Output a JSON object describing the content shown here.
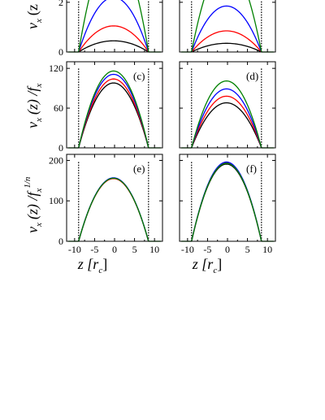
{
  "chart_data": [
    {
      "id": "a",
      "type": "line",
      "panel_label": "",
      "xlim": [
        -12,
        12
      ],
      "ylim": [
        0,
        3.4
      ],
      "yticks": [
        0,
        2
      ],
      "yticklabels": [
        "0",
        "2"
      ],
      "xticks": [
        -10,
        -5,
        0,
        5,
        10
      ],
      "xticklabels": [
        "",
        "",
        "",
        "",
        ""
      ],
      "walls": [
        -9,
        8.5
      ],
      "z0": -9,
      "z1": 8.5,
      "series": [
        {
          "color": "#000000",
          "peak": 0.45
        },
        {
          "color": "#ff0000",
          "peak": 1.05
        },
        {
          "color": "#0000ff",
          "peak": 2.2
        },
        {
          "color": "#008000",
          "peak": 4.2
        }
      ]
    },
    {
      "id": "b",
      "type": "line",
      "panel_label": "",
      "xlim": [
        -12,
        12
      ],
      "ylim": [
        0,
        3.4
      ],
      "yticks": [
        0,
        2
      ],
      "yticklabels": [
        "",
        ""
      ],
      "xticks": [
        -10,
        -5,
        0,
        5,
        10
      ],
      "xticklabels": [
        "",
        "",
        "",
        "",
        ""
      ],
      "walls": [
        -9,
        8.5
      ],
      "z0": -9,
      "z1": 8.5,
      "series": [
        {
          "color": "#000000",
          "peak": 0.35
        },
        {
          "color": "#ff0000",
          "peak": 0.85
        },
        {
          "color": "#0000ff",
          "peak": 1.85
        },
        {
          "color": "#008000",
          "peak": 3.6
        }
      ]
    },
    {
      "id": "c",
      "type": "line",
      "panel_label": "(c)",
      "xlim": [
        -12,
        12
      ],
      "ylim": [
        0,
        130
      ],
      "yticks": [
        0,
        60,
        120
      ],
      "yticklabels": [
        "0",
        "60",
        "120"
      ],
      "xticks": [
        -10,
        -5,
        0,
        5,
        10
      ],
      "xticklabels": [
        "",
        "",
        "",
        "",
        ""
      ],
      "walls": [
        -9,
        8.5
      ],
      "z0": -9,
      "z1": 8.5,
      "series": [
        {
          "color": "#000000",
          "peak": 98
        },
        {
          "color": "#ff0000",
          "peak": 104
        },
        {
          "color": "#0000ff",
          "peak": 111
        },
        {
          "color": "#008000",
          "peak": 116
        }
      ]
    },
    {
      "id": "d",
      "type": "line",
      "panel_label": "(d)",
      "xlim": [
        -12,
        12
      ],
      "ylim": [
        0,
        130
      ],
      "yticks": [
        0,
        60,
        120
      ],
      "yticklabels": [
        "",
        "",
        ""
      ],
      "xticks": [
        -10,
        -5,
        0,
        5,
        10
      ],
      "xticklabels": [
        "",
        "",
        "",
        "",
        ""
      ],
      "walls": [
        -9,
        8.5
      ],
      "z0": -9,
      "z1": 8.5,
      "series": [
        {
          "color": "#000000",
          "peak": 68
        },
        {
          "color": "#ff0000",
          "peak": 78
        },
        {
          "color": "#0000ff",
          "peak": 89
        },
        {
          "color": "#008000",
          "peak": 101
        }
      ]
    },
    {
      "id": "e",
      "type": "line",
      "panel_label": "(e)",
      "xlim": [
        -12,
        12
      ],
      "ylim": [
        0,
        215
      ],
      "yticks": [
        0,
        100,
        200
      ],
      "yticklabels": [
        "0",
        "100",
        "200"
      ],
      "xticks": [
        -10,
        -5,
        0,
        5,
        10
      ],
      "xticklabels": [
        "-10",
        "-5",
        "0",
        "5",
        "10"
      ],
      "walls": [
        -9,
        8.5
      ],
      "z0": -9,
      "z1": 8.5,
      "series": [
        {
          "color": "#000000",
          "peak": 156
        },
        {
          "color": "#ff0000",
          "peak": 155
        },
        {
          "color": "#0000ff",
          "peak": 157
        },
        {
          "color": "#008000",
          "peak": 156
        }
      ]
    },
    {
      "id": "f",
      "type": "line",
      "panel_label": "(f)",
      "xlim": [
        -12,
        12
      ],
      "ylim": [
        0,
        215
      ],
      "yticks": [
        0,
        100,
        200
      ],
      "yticklabels": [
        "",
        "",
        ""
      ],
      "xticks": [
        -10,
        -5,
        0,
        5,
        10
      ],
      "xticklabels": [
        "-10",
        "-5",
        "0",
        "5",
        "10"
      ],
      "walls": [
        -9,
        8.5
      ],
      "z0": -9,
      "z1": 8.5,
      "series": [
        {
          "color": "#000000",
          "peak": 191
        },
        {
          "color": "#ff0000",
          "peak": 194
        },
        {
          "color": "#0000ff",
          "peak": 196
        },
        {
          "color": "#008000",
          "peak": 193
        }
      ]
    }
  ],
  "ylabels": {
    "row1_main": "v",
    "row1_sub": "x",
    "row1_rest": "(z",
    "row2_main": "v",
    "row2_sub": "x",
    "row2_rest": "(z) /f",
    "row2_sub2": "x",
    "row3_main": "v",
    "row3_sub": "x",
    "row3_rest": "(z) /f",
    "row3_sub2": "x",
    "row3_sup": "1/n"
  },
  "xlabel": {
    "main": "z [r",
    "sub": "c",
    "close": "]"
  }
}
